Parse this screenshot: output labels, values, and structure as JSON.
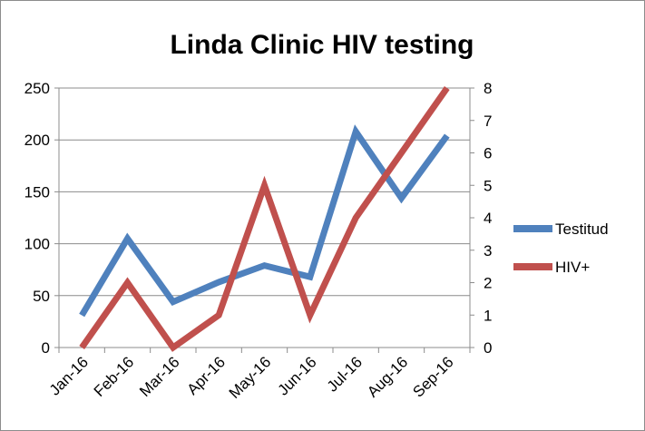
{
  "chart_data": {
    "type": "line",
    "title": "Linda Clinic HIV testing",
    "categories": [
      "Jan-16",
      "Feb-16",
      "Mar-16",
      "Apr-16",
      "May-16",
      "Jun-16",
      "Jul-16",
      "Aug-16",
      "Sep-16"
    ],
    "series": [
      {
        "name": "Testitud",
        "axis": "left",
        "color": "#4f81bd",
        "values": [
          31,
          105,
          44,
          63,
          79,
          68,
          208,
          144,
          204
        ]
      },
      {
        "name": "HIV+",
        "axis": "right",
        "color": "#c0504d",
        "values": [
          0,
          2,
          0,
          1,
          5,
          1,
          4,
          6,
          8
        ]
      }
    ],
    "y_left": {
      "ylim": [
        0,
        250
      ],
      "ticks": [
        "0",
        "50",
        "100",
        "150",
        "200",
        "250"
      ]
    },
    "y_right": {
      "ylim": [
        0,
        8
      ],
      "ticks": [
        "0",
        "1",
        "2",
        "3",
        "4",
        "5",
        "6",
        "7",
        "8"
      ]
    },
    "grid": true,
    "legend_position": "right"
  }
}
